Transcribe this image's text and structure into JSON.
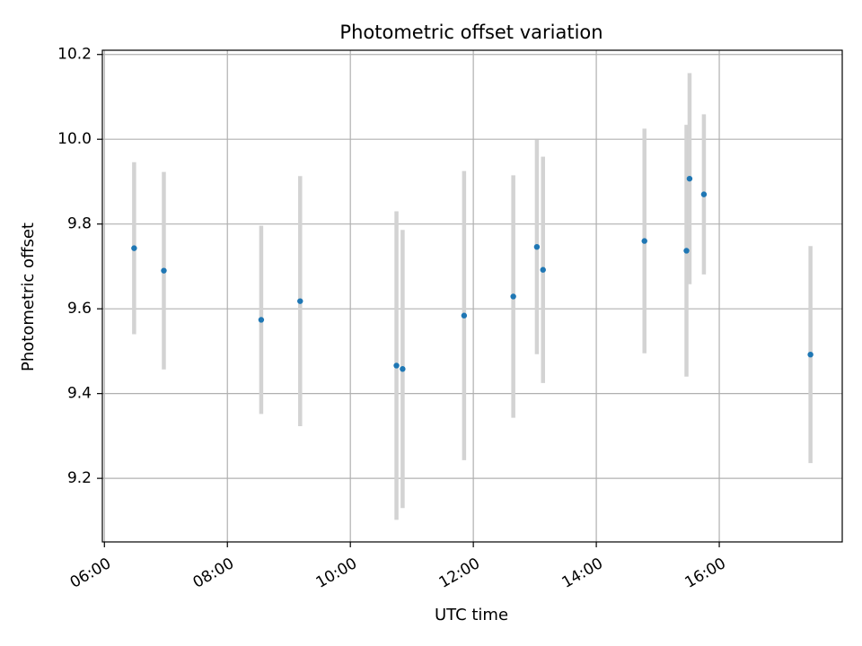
{
  "chart_data": {
    "type": "scatter",
    "title": "Photometric offset variation",
    "xlabel": "UTC time",
    "ylabel": "Photometric offset",
    "x_ticks": [
      "06:00",
      "08:00",
      "10:00",
      "12:00",
      "14:00",
      "16:00"
    ],
    "y_ticks": [
      "9.2",
      "9.4",
      "9.6",
      "9.8",
      "10.0",
      "10.2"
    ],
    "xlim": [
      "05:58",
      "18:00"
    ],
    "ylim": [
      9.05,
      10.21
    ],
    "grid": true,
    "colors": {
      "points": "#1f77b4",
      "errorbars": "#d3d3d3",
      "grid": "#b0b0b0"
    },
    "points": [
      {
        "x": "06:29",
        "y": 9.743,
        "err": 0.203
      },
      {
        "x": "06:58",
        "y": 9.69,
        "err": 0.233
      },
      {
        "x": "08:33",
        "y": 9.574,
        "err": 0.222
      },
      {
        "x": "09:11",
        "y": 9.618,
        "err": 0.295
      },
      {
        "x": "10:45",
        "y": 9.466,
        "err": 0.364
      },
      {
        "x": "10:51",
        "y": 9.458,
        "err": 0.328
      },
      {
        "x": "11:51",
        "y": 9.584,
        "err": 0.341
      },
      {
        "x": "12:39",
        "y": 9.629,
        "err": 0.286
      },
      {
        "x": "13:02",
        "y": 9.746,
        "err": 0.253
      },
      {
        "x": "13:08",
        "y": 9.692,
        "err": 0.267
      },
      {
        "x": "14:47",
        "y": 9.76,
        "err": 0.265
      },
      {
        "x": "15:28",
        "y": 9.737,
        "err": 0.297
      },
      {
        "x": "15:31",
        "y": 9.907,
        "err": 0.249
      },
      {
        "x": "15:45",
        "y": 9.87,
        "err": 0.189
      },
      {
        "x": "17:29",
        "y": 9.492,
        "err": 0.256
      }
    ]
  }
}
